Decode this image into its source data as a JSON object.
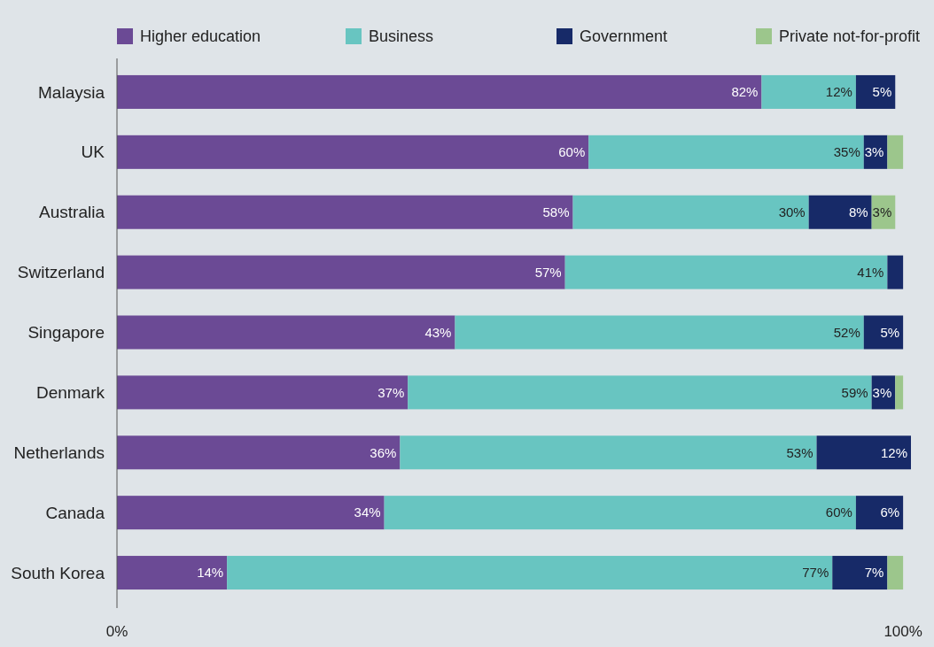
{
  "chart_data": {
    "type": "bar",
    "orientation": "horizontal",
    "stacked": true,
    "categories": [
      "Malaysia",
      "UK",
      "Australia",
      "Switzerland",
      "Singapore",
      "Denmark",
      "Netherlands",
      "Canada",
      "South Korea"
    ],
    "series": [
      {
        "name": "Higher education",
        "color": "#6b4a95",
        "values": [
          82,
          60,
          58,
          57,
          43,
          37,
          36,
          34,
          14
        ],
        "value_labels": [
          "82%",
          "60%",
          "58%",
          "57%",
          "43%",
          "37%",
          "36%",
          "34%",
          "14%"
        ]
      },
      {
        "name": "Business",
        "color": "#68c5c1",
        "values": [
          12,
          35,
          30,
          41,
          52,
          59,
          53,
          60,
          77
        ],
        "value_labels": [
          "12%",
          "35%",
          "30%",
          "41%",
          "52%",
          "59%",
          "53%",
          "60%",
          "77%"
        ]
      },
      {
        "name": "Government",
        "color": "#172a68",
        "values": [
          5,
          3,
          8,
          2,
          5,
          3,
          12,
          6,
          7
        ],
        "value_labels": [
          "5%",
          "3%",
          "8%",
          null,
          "5%",
          "3%",
          "12%",
          "6%",
          "7%"
        ]
      },
      {
        "name": "Private not-for-profit",
        "color": "#9cc68c",
        "values": [
          null,
          2,
          3,
          null,
          null,
          1,
          null,
          null,
          2
        ],
        "value_labels": [
          null,
          null,
          "3%",
          null,
          null,
          null,
          null,
          null,
          null
        ]
      }
    ],
    "xlim": [
      0,
      101
    ],
    "xticks": [
      {
        "value": 0,
        "label": "0%"
      },
      {
        "value": 100,
        "label": "100%"
      }
    ],
    "legend": "top",
    "grid": false
  }
}
